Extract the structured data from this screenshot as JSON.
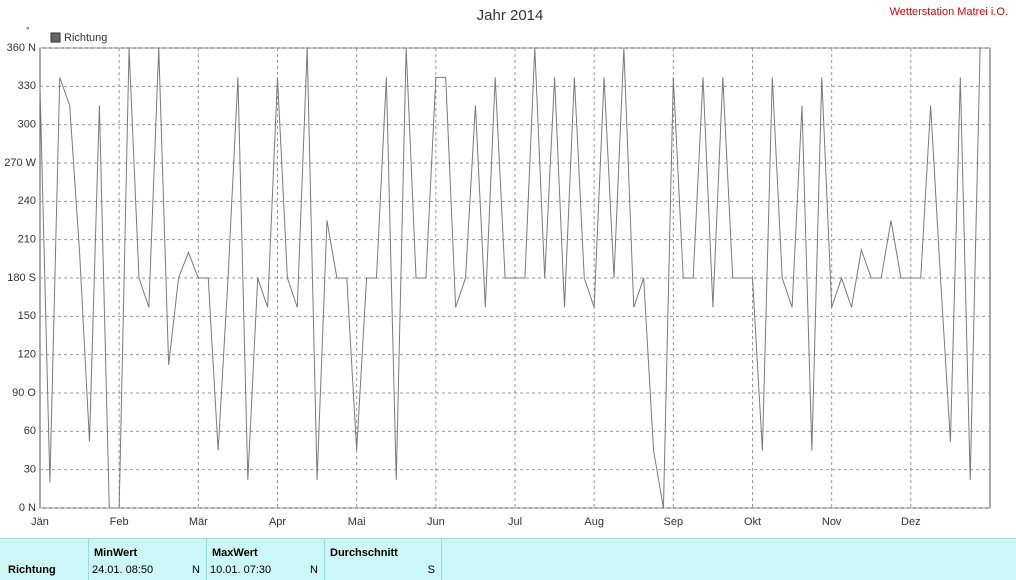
{
  "chart_data": {
    "type": "line",
    "title": "Jahr 2014",
    "station": "Wetterstation Matrei i.O.",
    "unit": "°",
    "categories": [
      "Jän",
      null,
      null,
      null,
      null,
      null,
      null,
      null,
      "Feb",
      null,
      null,
      null,
      null,
      null,
      null,
      null,
      "Mär",
      null,
      null,
      null,
      null,
      null,
      null,
      null,
      "Apr",
      null,
      null,
      null,
      null,
      null,
      null,
      null,
      "Mai",
      null,
      null,
      null,
      null,
      null,
      null,
      null,
      "Jun",
      null,
      null,
      null,
      null,
      null,
      null,
      null,
      "Jul",
      null,
      null,
      null,
      null,
      null,
      null,
      null,
      "Aug",
      null,
      null,
      null,
      null,
      null,
      null,
      null,
      "Sep",
      null,
      null,
      null,
      null,
      null,
      null,
      null,
      "Okt",
      null,
      null,
      null,
      null,
      null,
      null,
      null,
      "Nov",
      null,
      null,
      null,
      null,
      null,
      null,
      null,
      "Dez",
      null,
      null,
      null,
      null,
      null,
      null,
      null
    ],
    "series": [
      {
        "name": "Richtung",
        "color": "#7a7a7a",
        "values": [
          330,
          20,
          337,
          315,
          200,
          52,
          315,
          0,
          0,
          360,
          180,
          157,
          360,
          112,
          180,
          200,
          180,
          180,
          45,
          180,
          337,
          22,
          180,
          157,
          337,
          180,
          157,
          360,
          22,
          225,
          180,
          180,
          45,
          180,
          180,
          337,
          22,
          360,
          180,
          180,
          337,
          337,
          157,
          180,
          315,
          157,
          337,
          180,
          180,
          180,
          360,
          180,
          337,
          157,
          337,
          180,
          157,
          337,
          180,
          360,
          157,
          180,
          45,
          0,
          337,
          180,
          180,
          337,
          157,
          337,
          180,
          180,
          180,
          45,
          337,
          180,
          157,
          315,
          45,
          337,
          157,
          180,
          157,
          202,
          180,
          180,
          225,
          180,
          180,
          180,
          315,
          180,
          52,
          337,
          22,
          360
        ]
      }
    ],
    "ylim": [
      0,
      360
    ],
    "yticks": [
      {
        "value": 0,
        "label": "0 N"
      },
      30,
      60,
      {
        "value": 90,
        "label": "90 O"
      },
      120,
      150,
      {
        "value": 180,
        "label": "180 S"
      },
      210,
      240,
      {
        "value": 270,
        "label": "270 W"
      },
      300,
      330,
      {
        "value": 360,
        "label": "360 N"
      }
    ],
    "grid": true
  },
  "stats": {
    "row_label": "Richtung",
    "columns": [
      {
        "header": "MinWert",
        "value": "24.01.  08:50",
        "dir": "N"
      },
      {
        "header": "MaxWert",
        "value": "10.01.  07:30",
        "dir": "N"
      },
      {
        "header": "Durchschnitt",
        "value": "",
        "dir": "S"
      }
    ]
  }
}
